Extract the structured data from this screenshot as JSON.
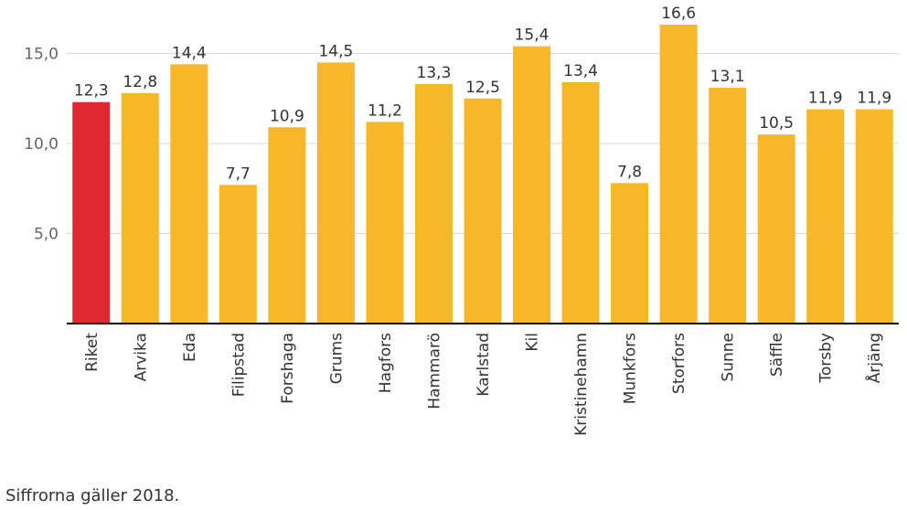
{
  "chart_data": {
    "type": "bar",
    "categories": [
      "Riket",
      "Arvika",
      "Eda",
      "Filipstad",
      "Forshaga",
      "Grums",
      "Hagfors",
      "Hammarö",
      "Karlstad",
      "Kil",
      "Kristinehamn",
      "Munkfors",
      "Storfors",
      "Sunne",
      "Säffle",
      "Torsby",
      "Årjäng"
    ],
    "values": [
      12.3,
      12.8,
      14.4,
      7.7,
      10.9,
      14.5,
      11.2,
      13.3,
      12.5,
      15.4,
      13.4,
      7.8,
      16.6,
      13.1,
      10.5,
      11.9,
      11.9
    ],
    "data_labels": [
      "12,3",
      "12,8",
      "14,4",
      "7,7",
      "10,9",
      "14,5",
      "11,2",
      "13,3",
      "12,5",
      "15,4",
      "13,4",
      "7,8",
      "16,6",
      "13,1",
      "10,5",
      "11,9",
      "11,9"
    ],
    "y_ticks": [
      5,
      10,
      15
    ],
    "y_tick_labels": [
      "5,0",
      "10,0",
      "15,0"
    ],
    "ylim": [
      0,
      17
    ],
    "grid": true,
    "colors": {
      "highlight": "#dc282e",
      "default": "#f6b829",
      "highlight_category": "Riket"
    }
  },
  "footnote": "Siffrorna gäller 2018."
}
